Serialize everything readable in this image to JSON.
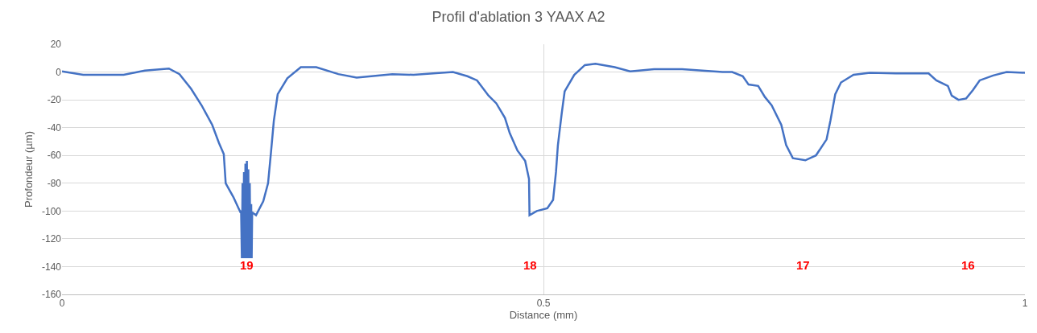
{
  "chart_data": {
    "type": "line",
    "title": "Profil d'ablation 3 YAAX A2",
    "xlabel": "Distance (mm)",
    "ylabel": "Profondeur (µm)",
    "x": [
      0,
      0.022,
      0.064,
      0.086,
      0.111,
      0.122,
      0.134,
      0.145,
      0.156,
      0.163,
      0.168,
      0.17,
      0.178,
      0.185,
      0.186,
      0.1868,
      0.1875,
      0.1882,
      0.189,
      0.1897,
      0.1905,
      0.1912,
      0.192,
      0.1927,
      0.1935,
      0.1942,
      0.195,
      0.1957,
      0.1965,
      0.197,
      0.1975,
      0.2015,
      0.209,
      0.214,
      0.217,
      0.22,
      0.224,
      0.234,
      0.248,
      0.264,
      0.287,
      0.306,
      0.343,
      0.365,
      0.406,
      0.421,
      0.431,
      0.443,
      0.451,
      0.46,
      0.465,
      0.473,
      0.481,
      0.485,
      0.4855,
      0.493,
      0.504,
      0.51,
      0.513,
      0.515,
      0.519,
      0.522,
      0.532,
      0.543,
      0.554,
      0.574,
      0.59,
      0.615,
      0.644,
      0.686,
      0.696,
      0.707,
      0.713,
      0.723,
      0.73,
      0.737,
      0.747,
      0.752,
      0.759,
      0.772,
      0.783,
      0.794,
      0.798,
      0.803,
      0.809,
      0.822,
      0.839,
      0.866,
      0.9,
      0.908,
      0.92,
      0.924,
      0.931,
      0.939,
      0.946,
      0.953,
      0.967,
      0.981,
      1.0
    ],
    "series": [
      {
        "color": "#4472c4",
        "values": [
          0.5,
          -2,
          -2,
          1,
          2.5,
          -1.5,
          -12,
          -24,
          -38,
          -51,
          -59,
          -80,
          -90,
          -100.5,
          -100,
          -134,
          -80,
          -134,
          -72,
          -134,
          -66,
          -134,
          -64,
          -134,
          -70,
          -134,
          -80,
          -134,
          -95,
          -134,
          -101,
          -103,
          -93,
          -80,
          -58,
          -35,
          -16,
          -4.5,
          3.5,
          3.5,
          -1.5,
          -4,
          -1.5,
          -2,
          0,
          -3,
          -6,
          -17,
          -22.5,
          -33,
          -44,
          -56.5,
          -64,
          -77,
          -103,
          -100,
          -98,
          -92,
          -72,
          -52.5,
          -29.5,
          -14,
          -2,
          5,
          6,
          3.5,
          0.5,
          2,
          2,
          0,
          0,
          -3,
          -9,
          -10,
          -18,
          -24,
          -38,
          -52.5,
          -62,
          -63.5,
          -60,
          -48.5,
          -35,
          -16,
          -7.5,
          -2,
          -0.5,
          -1,
          -1,
          -6,
          -10,
          -17,
          -20,
          -19,
          -13,
          -6,
          -2.5,
          0,
          -0.5
        ]
      }
    ],
    "xlim": [
      0,
      1
    ],
    "xticks": [
      0,
      0.5,
      1
    ],
    "ylim": [
      -160,
      20
    ],
    "yticks": [
      -160,
      -140,
      -120,
      -100,
      -80,
      -60,
      -40,
      -20,
      0,
      20
    ],
    "grid": true,
    "marker": "none",
    "line_style": "solid",
    "annotations": [
      "19",
      "18",
      "17",
      "16"
    ]
  }
}
